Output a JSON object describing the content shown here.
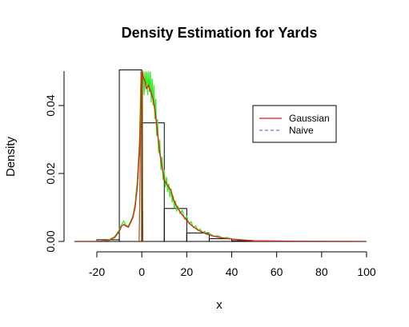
{
  "chart_data": {
    "type": "histogram+density",
    "title": "Density Estimation for Yards",
    "xlabel": "x",
    "ylabel": "Density",
    "xlim": [
      -30,
      100
    ],
    "ylim": [
      0,
      0.05
    ],
    "x_ticks": [
      -20,
      0,
      20,
      40,
      60,
      80,
      100
    ],
    "y_ticks": [
      0.0,
      0.02,
      0.04
    ],
    "y_tick_labels": [
      "0.00",
      "0.02",
      "0.04"
    ],
    "grid": false,
    "legend_placement": "right",
    "histogram": {
      "color": "#000000",
      "bins": [
        {
          "from": -20,
          "to": -10,
          "density": 0.0005
        },
        {
          "from": -10,
          "to": 0,
          "density": 0.0505
        },
        {
          "from": 0,
          "to": 10,
          "density": 0.0349
        },
        {
          "from": 10,
          "to": 20,
          "density": 0.0097
        },
        {
          "from": 20,
          "to": 30,
          "density": 0.0025
        },
        {
          "from": 30,
          "to": 40,
          "density": 0.0008
        },
        {
          "from": 40,
          "to": 50,
          "density": 0.0002
        },
        {
          "from": 50,
          "to": 60,
          "density": 0.0001
        },
        {
          "from": 60,
          "to": 70,
          "density": 0.0
        },
        {
          "from": 70,
          "to": 80,
          "density": 0.0
        },
        {
          "from": 80,
          "to": 90,
          "density": 0.0
        },
        {
          "from": 90,
          "to": 100,
          "density": 0.0
        }
      ]
    },
    "series": [
      {
        "name": "Gaussian",
        "color": "#e41a1c",
        "dash": "solid",
        "points": [
          [
            -30,
            0
          ],
          [
            -20,
            0
          ],
          [
            -15,
            0.0002
          ],
          [
            -12,
            0.0012
          ],
          [
            -10,
            0.003
          ],
          [
            -9,
            0.0045
          ],
          [
            -8,
            0.005
          ],
          [
            -7,
            0.0045
          ],
          [
            -6,
            0.0042
          ],
          [
            -5,
            0.0055
          ],
          [
            -4,
            0.007
          ],
          [
            -3,
            0.01
          ],
          [
            -2,
            0.016
          ],
          [
            -1,
            0.028
          ],
          [
            -0.5,
            0.04
          ],
          [
            -0.3,
            0.05
          ],
          [
            0.3,
            0.05
          ],
          [
            0.8,
            0.048
          ],
          [
            1.5,
            0.047
          ],
          [
            2,
            0.045
          ],
          [
            3,
            0.046
          ],
          [
            4,
            0.044
          ],
          [
            5,
            0.042
          ],
          [
            6,
            0.038
          ],
          [
            7,
            0.032
          ],
          [
            8,
            0.026
          ],
          [
            9,
            0.022
          ],
          [
            10,
            0.018
          ],
          [
            11,
            0.017
          ],
          [
            12,
            0.016
          ],
          [
            13,
            0.015
          ],
          [
            14,
            0.0125
          ],
          [
            15,
            0.011
          ],
          [
            16,
            0.0098
          ],
          [
            17,
            0.0088
          ],
          [
            18,
            0.0078
          ],
          [
            20,
            0.0062
          ],
          [
            22,
            0.0048
          ],
          [
            24,
            0.0038
          ],
          [
            26,
            0.003
          ],
          [
            28,
            0.0024
          ],
          [
            30,
            0.0019
          ],
          [
            33,
            0.0014
          ],
          [
            36,
            0.001
          ],
          [
            40,
            0.0007
          ],
          [
            45,
            0.0004
          ],
          [
            50,
            0.0002
          ],
          [
            60,
            0.0001
          ],
          [
            70,
            5e-05
          ],
          [
            100,
            0
          ]
        ]
      },
      {
        "name": "Naive",
        "color": "#6a74d9",
        "dash": "dashed",
        "points": [
          [
            -30,
            0
          ],
          [
            -20,
            0
          ],
          [
            -15,
            0.0002
          ],
          [
            -12,
            0.0012
          ],
          [
            -10,
            0.003
          ],
          [
            -9,
            0.0045
          ],
          [
            -8,
            0.005
          ],
          [
            -7,
            0.0045
          ],
          [
            -6,
            0.0042
          ],
          [
            -5,
            0.0055
          ],
          [
            -4,
            0.007
          ],
          [
            -3,
            0.01
          ],
          [
            -2,
            0.016
          ],
          [
            -1,
            0.028
          ],
          [
            -0.5,
            0.04
          ],
          [
            -0.3,
            0.05
          ],
          [
            0.3,
            0.05
          ],
          [
            0.8,
            0.048
          ],
          [
            1.5,
            0.047
          ],
          [
            2,
            0.045
          ],
          [
            3,
            0.046
          ],
          [
            4,
            0.044
          ],
          [
            5,
            0.042
          ],
          [
            6,
            0.038
          ],
          [
            7,
            0.032
          ],
          [
            8,
            0.026
          ],
          [
            9,
            0.022
          ],
          [
            10,
            0.018
          ],
          [
            11,
            0.017
          ],
          [
            12,
            0.016
          ],
          [
            13,
            0.015
          ],
          [
            14,
            0.0125
          ],
          [
            15,
            0.011
          ],
          [
            16,
            0.0098
          ],
          [
            17,
            0.0088
          ],
          [
            18,
            0.0078
          ],
          [
            20,
            0.0062
          ],
          [
            22,
            0.0048
          ],
          [
            24,
            0.0038
          ],
          [
            26,
            0.003
          ],
          [
            28,
            0.0024
          ],
          [
            30,
            0.0019
          ],
          [
            33,
            0.0014
          ],
          [
            36,
            0.001
          ],
          [
            40,
            0.0007
          ],
          [
            45,
            0.0004
          ],
          [
            50,
            0.0002
          ],
          [
            60,
            0.0001
          ],
          [
            70,
            5e-05
          ],
          [
            100,
            0
          ]
        ]
      },
      {
        "name": "",
        "color": "#33ee22",
        "dash": "solid",
        "points": [
          [
            -30,
            0
          ],
          [
            -20,
            0
          ],
          [
            -15,
            0.0003
          ],
          [
            -12,
            0.0015
          ],
          [
            -10,
            0.0035
          ],
          [
            -9,
            0.005
          ],
          [
            -8,
            0.006
          ],
          [
            -7,
            0.0048
          ],
          [
            -6,
            0.0046
          ],
          [
            -5,
            0.006
          ],
          [
            -4,
            0.0075
          ],
          [
            -3,
            0.011
          ],
          [
            -2,
            0.018
          ],
          [
            -1,
            0.03
          ],
          [
            -0.5,
            0.045
          ],
          [
            -0.2,
            0.05
          ],
          [
            0.5,
            0.05
          ],
          [
            1,
            0.043
          ],
          [
            1.4,
            0.05
          ],
          [
            1.8,
            0.045
          ],
          [
            2.2,
            0.05
          ],
          [
            2.6,
            0.043
          ],
          [
            3,
            0.05
          ],
          [
            3.4,
            0.044
          ],
          [
            3.8,
            0.05
          ],
          [
            4.2,
            0.041
          ],
          [
            4.6,
            0.048
          ],
          [
            5,
            0.04
          ],
          [
            5.4,
            0.046
          ],
          [
            5.8,
            0.036
          ],
          [
            6.2,
            0.042
          ],
          [
            6.6,
            0.031
          ],
          [
            7,
            0.036
          ],
          [
            7.5,
            0.026
          ],
          [
            8,
            0.03
          ],
          [
            8.5,
            0.021
          ],
          [
            9,
            0.025
          ],
          [
            9.5,
            0.018
          ],
          [
            10,
            0.021
          ],
          [
            10.5,
            0.016
          ],
          [
            11,
            0.019
          ],
          [
            11.5,
            0.0145
          ],
          [
            12,
            0.017
          ],
          [
            12.5,
            0.013
          ],
          [
            13,
            0.0155
          ],
          [
            13.5,
            0.0115
          ],
          [
            14,
            0.0135
          ],
          [
            14.5,
            0.0098
          ],
          [
            15,
            0.012
          ],
          [
            15.5,
            0.0088
          ],
          [
            16,
            0.0105
          ],
          [
            17,
            0.0082
          ],
          [
            18,
            0.0092
          ],
          [
            19,
            0.0066
          ],
          [
            20,
            0.0074
          ],
          [
            21,
            0.0052
          ],
          [
            22,
            0.0058
          ],
          [
            23,
            0.004
          ],
          [
            24,
            0.0046
          ],
          [
            25,
            0.0032
          ],
          [
            26,
            0.0037
          ],
          [
            27,
            0.0026
          ],
          [
            28,
            0.003
          ],
          [
            29,
            0.002
          ],
          [
            30,
            0.0024
          ],
          [
            32,
            0.0015
          ],
          [
            34,
            0.0017
          ],
          [
            36,
            0.001
          ],
          [
            38,
            0.0012
          ],
          [
            40,
            0.0007
          ],
          [
            45,
            0.0005
          ],
          [
            50,
            0.0002
          ],
          [
            60,
            0.0001
          ],
          [
            70,
            5e-05
          ],
          [
            100,
            0
          ]
        ]
      },
      {
        "name": "",
        "color": "#b35a00",
        "dash": "solid",
        "points": [
          [
            -1.2,
            0
          ],
          [
            -0.9,
            0.012
          ],
          [
            -0.6,
            0.03
          ],
          [
            -0.35,
            0.05
          ],
          [
            0.25,
            0.05
          ],
          [
            0.35,
            0.012
          ],
          [
            0.5,
            0
          ]
        ]
      }
    ],
    "legend": [
      {
        "label": "Gaussian",
        "color": "#e41a1c",
        "dash": "solid"
      },
      {
        "label": "Naive",
        "color": "#6a74d9",
        "dash": "dashed"
      }
    ]
  }
}
